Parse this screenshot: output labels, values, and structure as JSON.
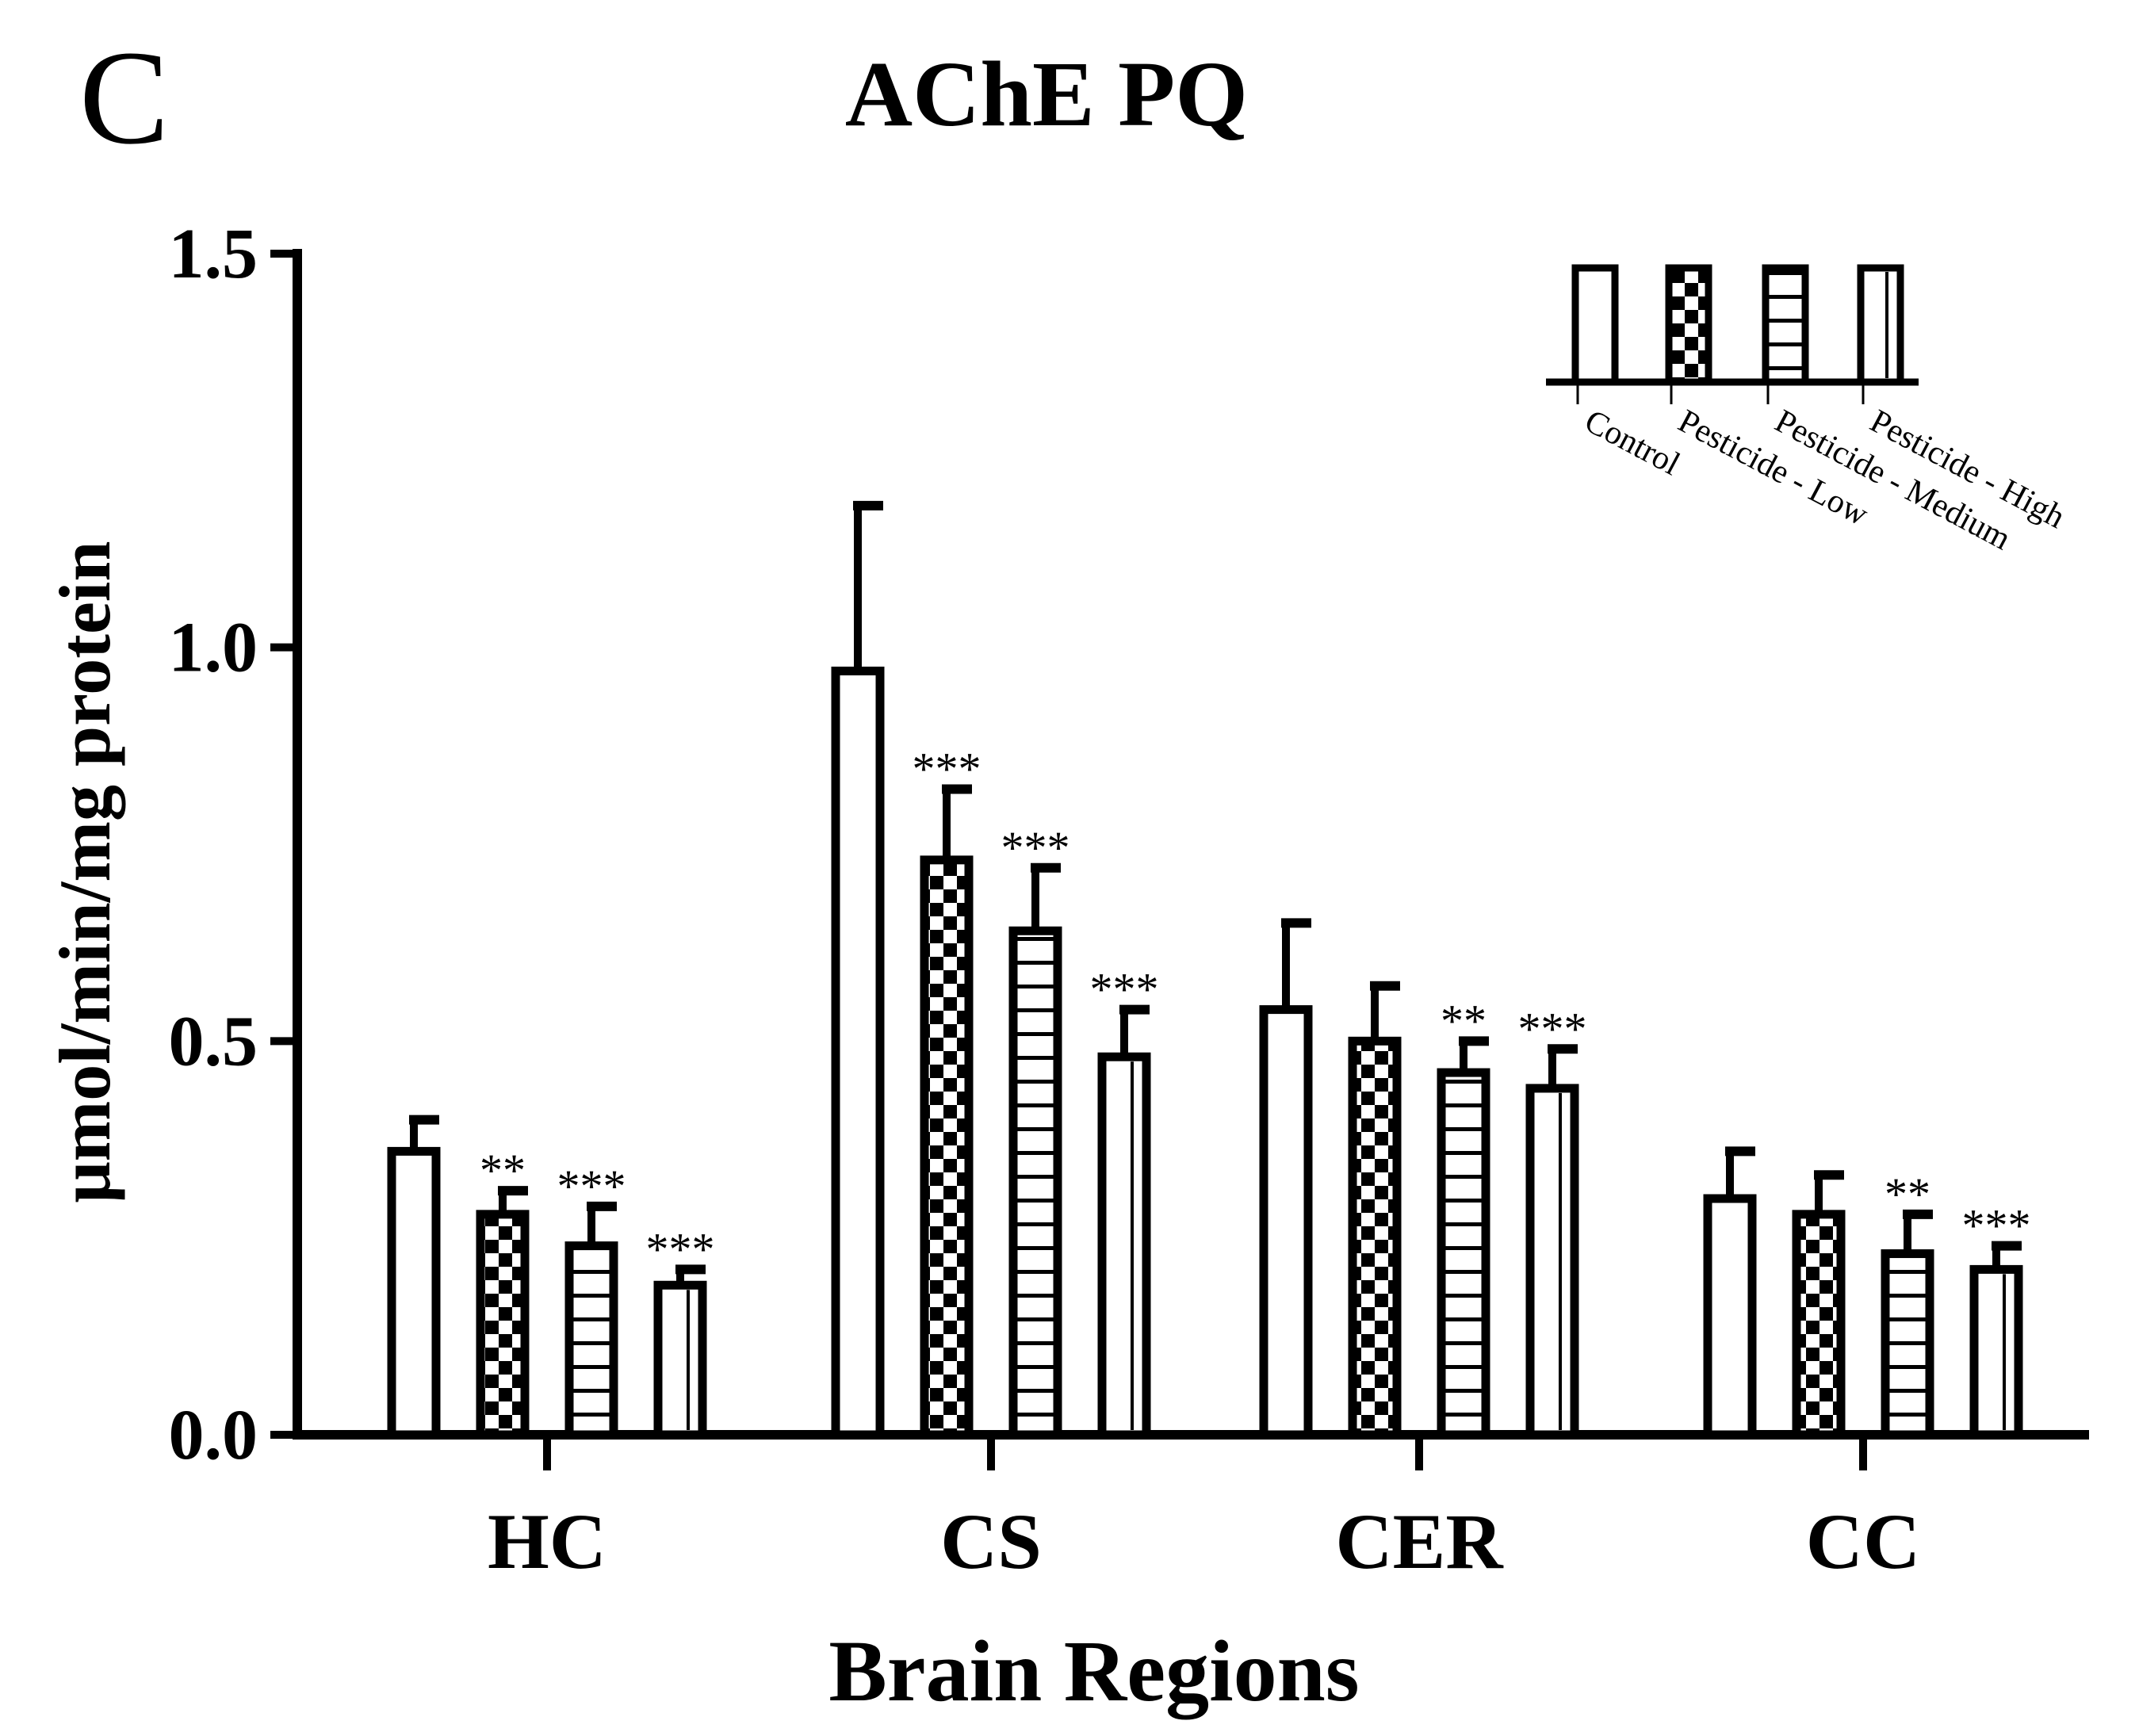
{
  "panel_letter": "C",
  "chart_data": {
    "type": "bar",
    "title": "AChE PQ",
    "xlabel": "Brain Regions",
    "ylabel": "μmol/min/mg protein",
    "ylim": [
      0,
      1.5
    ],
    "yticks": [
      "0.0",
      "0.5",
      "1.0",
      "1.5"
    ],
    "ytick_values": [
      0,
      0.5,
      1.0,
      1.5
    ],
    "grid": false,
    "legend_position": "top-right",
    "categories": [
      "HC",
      "CS",
      "CER",
      "CC"
    ],
    "series": [
      {
        "name": "Control",
        "pattern": "plain",
        "values": [
          0.36,
          0.97,
          0.54,
          0.3
        ],
        "errors": [
          0.04,
          0.21,
          0.11,
          0.06
        ],
        "significance": [
          "",
          "",
          "",
          ""
        ]
      },
      {
        "name": "Pesticide - Low",
        "pattern": "checker",
        "values": [
          0.28,
          0.73,
          0.5,
          0.28
        ],
        "errors": [
          0.03,
          0.09,
          0.07,
          0.05
        ],
        "significance": [
          "**",
          "***",
          "",
          ""
        ]
      },
      {
        "name": "Pesticide - Medium",
        "pattern": "hlines",
        "values": [
          0.24,
          0.64,
          0.46,
          0.23
        ],
        "errors": [
          0.05,
          0.08,
          0.04,
          0.05
        ],
        "significance": [
          "***",
          "***",
          "**",
          "**"
        ]
      },
      {
        "name": "Pesticide - High",
        "pattern": "vline",
        "values": [
          0.19,
          0.48,
          0.44,
          0.21
        ],
        "errors": [
          0.02,
          0.06,
          0.05,
          0.03
        ],
        "significance": [
          "***",
          "***",
          "***",
          "***"
        ]
      }
    ]
  }
}
